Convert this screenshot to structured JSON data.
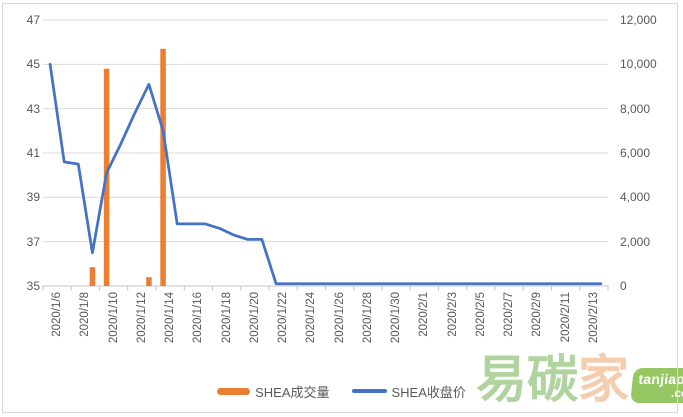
{
  "chart_data": {
    "type": "combo",
    "title": "",
    "categories": [
      "2020/1/6",
      "2020/1/7",
      "2020/1/8",
      "2020/1/9",
      "2020/1/10",
      "2020/1/11",
      "2020/1/12",
      "2020/1/13",
      "2020/1/14",
      "2020/1/15",
      "2020/1/16",
      "2020/1/17",
      "2020/1/18",
      "2020/1/19",
      "2020/1/20",
      "2020/1/21",
      "2020/1/22",
      "2020/1/23",
      "2020/1/24",
      "2020/1/25",
      "2020/1/26",
      "2020/1/27",
      "2020/1/28",
      "2020/1/29",
      "2020/1/30",
      "2020/1/31",
      "2020/2/1",
      "2020/2/2",
      "2020/2/3",
      "2020/2/4",
      "2020/2/5",
      "2020/2/6",
      "2020/2/7",
      "2020/2/8",
      "2020/2/9",
      "2020/2/10",
      "2020/2/11",
      "2020/2/12",
      "2020/2/13",
      "2020/2/14"
    ],
    "x_label_every": 2,
    "series": [
      {
        "name": "SHEA成交量",
        "kind": "bar",
        "axis": "right",
        "color": "#ED7D31",
        "values": [
          0,
          0,
          0,
          850,
          9800,
          0,
          0,
          400,
          10700,
          0,
          0,
          0,
          0,
          0,
          0,
          0,
          0,
          0,
          0,
          0,
          0,
          0,
          0,
          0,
          0,
          0,
          0,
          0,
          0,
          0,
          0,
          0,
          0,
          0,
          0,
          0,
          0,
          0,
          0,
          0
        ]
      },
      {
        "name": "SHEA收盘价",
        "kind": "line",
        "axis": "left",
        "color": "#4472C4",
        "values": [
          45.0,
          40.6,
          40.5,
          36.5,
          40.1,
          41.4,
          42.8,
          44.1,
          42.0,
          37.8,
          37.8,
          37.8,
          37.6,
          37.3,
          37.1,
          37.1,
          35.1,
          35.1,
          35.1,
          35.1,
          35.1,
          35.1,
          35.1,
          35.1,
          35.1,
          35.1,
          35.1,
          35.1,
          35.1,
          35.1,
          35.1,
          35.1,
          35.1,
          35.1,
          35.1,
          35.1,
          35.1,
          35.1,
          35.1,
          35.1
        ]
      }
    ],
    "left_axis": {
      "min": 35,
      "max": 47,
      "step": 2,
      "labels": [
        "47",
        "45",
        "43",
        "41",
        "39",
        "37",
        "35"
      ]
    },
    "right_axis": {
      "min": 0,
      "max": 12000,
      "step": 2000,
      "labels": [
        "12,000",
        "10,000",
        "8,000",
        "6,000",
        "4,000",
        "2,000",
        "0"
      ]
    },
    "grid": true,
    "legend_position": "bottom",
    "gridline_color": "#D9D9D9",
    "axis_line_color": "#C6C6C6",
    "axis_text_color": "#595959",
    "background": "#FFFFFF"
  },
  "watermark": {
    "chars": [
      "易",
      "碳",
      "家"
    ],
    "site": "tanjiaoyi",
    "tld": ".com",
    "char_green": "#A3CC90",
    "char_peach": "#F3C5A0",
    "badge_color": "#8CC152"
  }
}
